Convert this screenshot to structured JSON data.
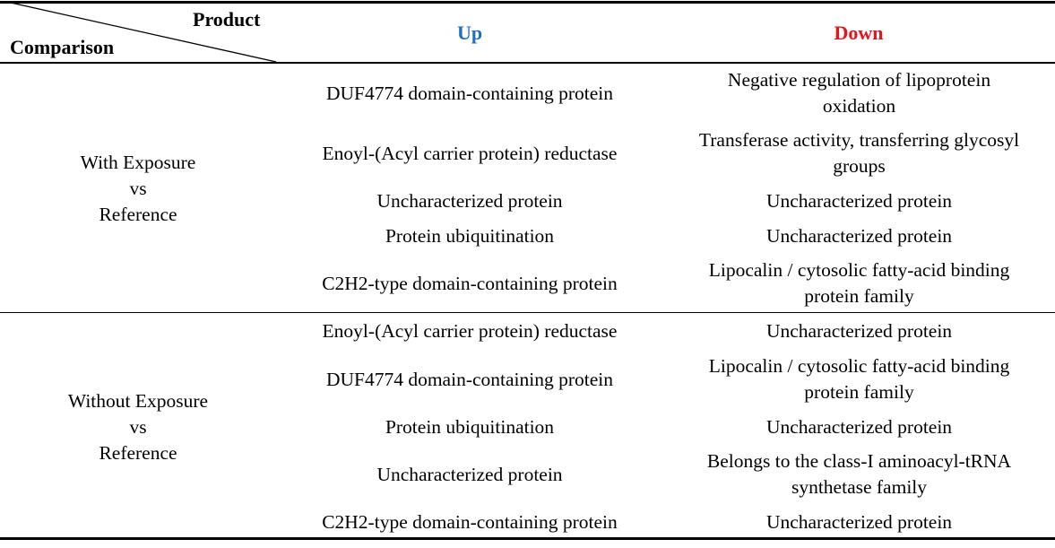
{
  "header": {
    "product_label": "Product",
    "comparison_label": "Comparison",
    "up_label": "Up",
    "down_label": "Down",
    "up_color": "#1F6FC0",
    "down_color": "#E8141C"
  },
  "groups": [
    {
      "comparison": [
        "With Exposure",
        "vs",
        "Reference"
      ],
      "rows": [
        {
          "up": "DUF4774 domain-containing protein",
          "down": [
            "Negative regulation of lipoprotein",
            "oxidation"
          ]
        },
        {
          "up": "Enoyl-(Acyl carrier protein) reductase",
          "down": [
            "Transferase activity, transferring glycosyl",
            "groups"
          ]
        },
        {
          "up": "Uncharacterized protein",
          "down": [
            "Uncharacterized protein"
          ]
        },
        {
          "up": "Protein ubiquitination",
          "down": [
            "Uncharacterized protein"
          ]
        },
        {
          "up": "C2H2-type domain-containing protein",
          "down": [
            "Lipocalin / cytosolic fatty-acid binding",
            "protein family"
          ]
        }
      ]
    },
    {
      "comparison": [
        "Without Exposure",
        "vs",
        "Reference"
      ],
      "rows": [
        {
          "up": "Enoyl-(Acyl carrier protein) reductase",
          "down": [
            "Uncharacterized protein"
          ]
        },
        {
          "up": "DUF4774 domain-containing protein",
          "down": [
            "Lipocalin / cytosolic fatty-acid binding",
            "protein family"
          ]
        },
        {
          "up": "Protein ubiquitination",
          "down": [
            "Uncharacterized protein"
          ]
        },
        {
          "up": "Uncharacterized protein",
          "down": [
            "Belongs to the class-I aminoacyl-tRNA",
            "synthetase family"
          ]
        },
        {
          "up": "C2H2-type domain-containing protein",
          "down": [
            "Uncharacterized protein"
          ]
        }
      ]
    }
  ]
}
